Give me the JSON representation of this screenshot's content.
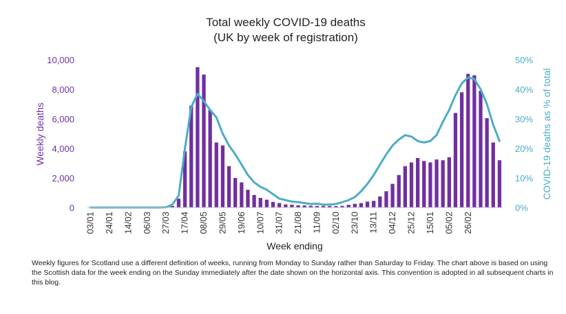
{
  "chart_data": {
    "type": "bar+line",
    "title": "Total weekly COVID-19 deaths",
    "subtitle": "(UK by week of registration)",
    "xlabel": "Week ending",
    "ylabel_left": "Weekly deaths",
    "ylabel_right": "COVID-19 deaths as % of total",
    "ylim_left": [
      0,
      10000
    ],
    "ylim_right": [
      0,
      50
    ],
    "yticks_left": [
      "0",
      "2,000",
      "4,000",
      "6,000",
      "8,000",
      "10,000"
    ],
    "yticks_right": [
      "0%",
      "10%",
      "20%",
      "30%",
      "40%",
      "50%"
    ],
    "grid": false,
    "legend": "none",
    "x_tick_labels": [
      "03/01",
      "24/01",
      "14/02",
      "06/03",
      "27/03",
      "17/04",
      "08/05",
      "29/05",
      "19/06",
      "10/07",
      "31/07",
      "21/08",
      "11/09",
      "02/10",
      "23/10",
      "13/11",
      "04/12",
      "25/12",
      "15/01",
      "05/02",
      "26/02"
    ],
    "x_tick_every": 3,
    "series": [
      {
        "kind": "bar",
        "axis": "left",
        "color": "#7030a0",
        "values": [
          0,
          0,
          0,
          0,
          0,
          0,
          0,
          0,
          0,
          0,
          0,
          0,
          20,
          100,
          600,
          3800,
          6900,
          9500,
          9000,
          6600,
          4400,
          4200,
          2800,
          2000,
          1700,
          1200,
          850,
          650,
          530,
          380,
          300,
          210,
          190,
          150,
          140,
          120,
          110,
          110,
          100,
          95,
          110,
          180,
          250,
          300,
          400,
          450,
          750,
          1100,
          1600,
          2200,
          2800,
          3050,
          3350,
          3150,
          3050,
          3250,
          3200,
          3400,
          6400,
          7800,
          9050,
          8950,
          7900,
          6050,
          4400,
          3200
        ]
      },
      {
        "kind": "line",
        "axis": "right",
        "color": "#4bacc6",
        "values": [
          0,
          0,
          0,
          0,
          0,
          0,
          0,
          0,
          0,
          0,
          0,
          0,
          0.1,
          1,
          4,
          20,
          34,
          38.5,
          36,
          33,
          30.5,
          25,
          21,
          18,
          14.5,
          11,
          8.5,
          7,
          6,
          4.5,
          3,
          2.5,
          2,
          1.8,
          1.5,
          1.2,
          1.3,
          1,
          1,
          1.2,
          1.8,
          2.5,
          3.5,
          5.5,
          8,
          11,
          14.5,
          18,
          21,
          23,
          24.5,
          24,
          22.5,
          22,
          22.5,
          24.5,
          29,
          33,
          38,
          42,
          44,
          43.5,
          40,
          35,
          28,
          22.5
        ]
      }
    ]
  },
  "footnote": "Weekly figures for Scotland use a different definition of weeks, running from Monday to Sunday rather than Saturday to Friday. The chart above is based on using the Scottish data for the week ending on the Sunday immediately after the date shown on the horizontal axis. This convention is adopted in all subsequent charts in this blog."
}
